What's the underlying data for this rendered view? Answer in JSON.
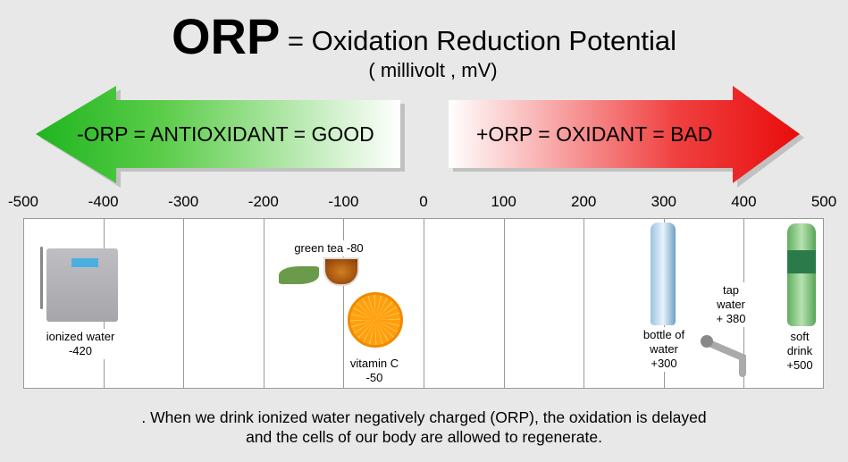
{
  "title": {
    "acronym": "ORP",
    "rest": "= Oxidation Reduction Potential",
    "unit": "( millivolt , mV)"
  },
  "arrows": {
    "left": {
      "label": "-ORP = ANTIOXIDANT = GOOD",
      "color": "#22bb22"
    },
    "right": {
      "label": "+ORP = OXIDANT = BAD",
      "color": "#ee1111"
    }
  },
  "chart_data": {
    "type": "scale",
    "axis_ticks": [
      "-500",
      "-400",
      "-300",
      "-200",
      "-100",
      "0",
      "100",
      "200",
      "300",
      "400",
      "500"
    ],
    "xlim": [
      -500,
      500
    ],
    "items": [
      {
        "name": "ionized water",
        "value": -420,
        "label_lines": [
          "ionized water",
          "-420"
        ]
      },
      {
        "name": "green tea",
        "value": -80,
        "label_lines": [
          "green tea -80"
        ]
      },
      {
        "name": "vitamin C",
        "value": -50,
        "label_lines": [
          "vitamin C",
          "-50"
        ]
      },
      {
        "name": "bottle of water",
        "value": 300,
        "label_lines": [
          "bottle of",
          "water",
          "+300"
        ]
      },
      {
        "name": "tap water",
        "value": 380,
        "label_lines": [
          "tap",
          "water",
          "+ 380"
        ]
      },
      {
        "name": "soft drink",
        "value": 500,
        "label_lines": [
          "soft",
          "drink",
          "+500"
        ]
      }
    ]
  },
  "footer": {
    "line1": ". When we drink ionized water negatively charged (ORP),  the oxidation is delayed",
    "line2": "and the cells of our body are allowed to regenerate."
  }
}
